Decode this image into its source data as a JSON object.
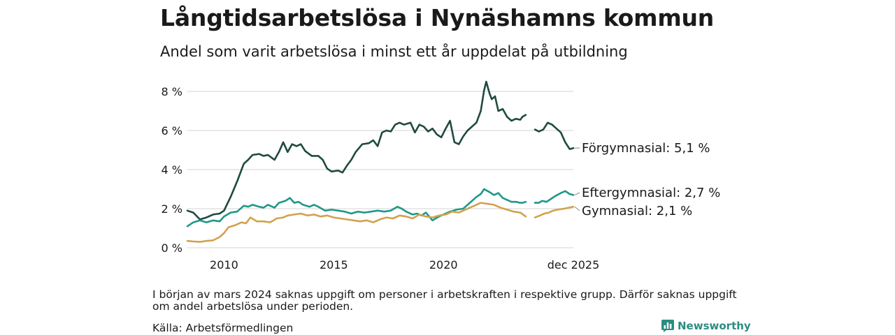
{
  "title": "Långtidsarbetslösa i Nynäshamns kommun",
  "subtitle": "Andel som varit arbetslösa i minst ett år uppdelat på utbildning",
  "note": "I början av mars 2024 saknas uppgift om personer i arbetskraften i respektive grupp. Därför saknas uppgift om andel arbetslösa under perioden.",
  "source": "Källa: Arbetsförmedlingen",
  "brand": "Newsworthy",
  "chart_data": {
    "type": "line",
    "title": "Långtidsarbetslösa i Nynäshamns kommun",
    "xlabel": "",
    "ylabel": "",
    "ylim": [
      0,
      8.5
    ],
    "xlim": [
      2008.33,
      2025.92
    ],
    "grid": true,
    "y_ticks": [
      0,
      2,
      4,
      6,
      8
    ],
    "y_tick_labels": [
      "0 %",
      "2 %",
      "4 %",
      "6 %",
      "8 %"
    ],
    "x_ticks": [
      2010,
      2015,
      2020,
      2025.92
    ],
    "x_tick_labels": [
      "2010",
      "2015",
      "2020",
      "dec 2025"
    ],
    "gap": [
      2023.75,
      2024.17
    ],
    "series": [
      {
        "name": "Förgymnasial",
        "label": "Förgymnasial: 5,1 %",
        "color": "#1f4a40",
        "points": [
          [
            2008.33,
            1.9
          ],
          [
            2008.6,
            1.8
          ],
          [
            2008.9,
            1.45
          ],
          [
            2009.2,
            1.55
          ],
          [
            2009.5,
            1.7
          ],
          [
            2009.8,
            1.75
          ],
          [
            2010.0,
            1.9
          ],
          [
            2010.3,
            2.6
          ],
          [
            2010.6,
            3.4
          ],
          [
            2010.9,
            4.3
          ],
          [
            2011.1,
            4.5
          ],
          [
            2011.3,
            4.75
          ],
          [
            2011.6,
            4.8
          ],
          [
            2011.8,
            4.7
          ],
          [
            2012.0,
            4.75
          ],
          [
            2012.3,
            4.5
          ],
          [
            2012.5,
            4.9
          ],
          [
            2012.7,
            5.4
          ],
          [
            2012.9,
            4.9
          ],
          [
            2013.1,
            5.3
          ],
          [
            2013.3,
            5.2
          ],
          [
            2013.5,
            5.3
          ],
          [
            2013.7,
            4.95
          ],
          [
            2014.0,
            4.7
          ],
          [
            2014.3,
            4.7
          ],
          [
            2014.5,
            4.5
          ],
          [
            2014.7,
            4.05
          ],
          [
            2014.9,
            3.9
          ],
          [
            2015.2,
            3.95
          ],
          [
            2015.4,
            3.85
          ],
          [
            2015.6,
            4.2
          ],
          [
            2015.8,
            4.5
          ],
          [
            2016.0,
            4.9
          ],
          [
            2016.3,
            5.3
          ],
          [
            2016.6,
            5.35
          ],
          [
            2016.8,
            5.5
          ],
          [
            2017.0,
            5.2
          ],
          [
            2017.2,
            5.9
          ],
          [
            2017.4,
            6.0
          ],
          [
            2017.6,
            5.95
          ],
          [
            2017.8,
            6.3
          ],
          [
            2018.0,
            6.4
          ],
          [
            2018.2,
            6.3
          ],
          [
            2018.5,
            6.4
          ],
          [
            2018.7,
            5.9
          ],
          [
            2018.9,
            6.3
          ],
          [
            2019.1,
            6.2
          ],
          [
            2019.3,
            5.95
          ],
          [
            2019.5,
            6.1
          ],
          [
            2019.7,
            5.8
          ],
          [
            2019.9,
            5.65
          ],
          [
            2020.1,
            6.1
          ],
          [
            2020.3,
            6.5
          ],
          [
            2020.5,
            5.4
          ],
          [
            2020.7,
            5.3
          ],
          [
            2020.9,
            5.7
          ],
          [
            2021.1,
            6.0
          ],
          [
            2021.3,
            6.2
          ],
          [
            2021.5,
            6.4
          ],
          [
            2021.7,
            7.0
          ],
          [
            2021.85,
            8.05
          ],
          [
            2021.95,
            8.5
          ],
          [
            2022.1,
            7.9
          ],
          [
            2022.2,
            7.6
          ],
          [
            2022.35,
            7.75
          ],
          [
            2022.5,
            7.0
          ],
          [
            2022.7,
            7.1
          ],
          [
            2022.9,
            6.7
          ],
          [
            2023.1,
            6.5
          ],
          [
            2023.3,
            6.6
          ],
          [
            2023.5,
            6.55
          ],
          [
            2023.6,
            6.7
          ],
          [
            2023.75,
            6.8
          ],
          [
            2024.17,
            6.05
          ],
          [
            2024.35,
            5.95
          ],
          [
            2024.55,
            6.05
          ],
          [
            2024.75,
            6.4
          ],
          [
            2024.95,
            6.3
          ],
          [
            2025.15,
            6.1
          ],
          [
            2025.35,
            5.9
          ],
          [
            2025.55,
            5.4
          ],
          [
            2025.75,
            5.05
          ],
          [
            2025.92,
            5.1
          ]
        ]
      },
      {
        "name": "Eftergymnasial",
        "label": "Eftergymnasial: 2,7 %",
        "color": "#1f9887",
        "points": [
          [
            2008.33,
            1.1
          ],
          [
            2008.6,
            1.3
          ],
          [
            2008.9,
            1.4
          ],
          [
            2009.2,
            1.3
          ],
          [
            2009.5,
            1.4
          ],
          [
            2009.8,
            1.35
          ],
          [
            2010.0,
            1.6
          ],
          [
            2010.3,
            1.8
          ],
          [
            2010.6,
            1.85
          ],
          [
            2010.9,
            2.15
          ],
          [
            2011.1,
            2.1
          ],
          [
            2011.3,
            2.2
          ],
          [
            2011.6,
            2.1
          ],
          [
            2011.8,
            2.05
          ],
          [
            2012.0,
            2.2
          ],
          [
            2012.3,
            2.05
          ],
          [
            2012.5,
            2.3
          ],
          [
            2012.8,
            2.4
          ],
          [
            2013.0,
            2.55
          ],
          [
            2013.2,
            2.3
          ],
          [
            2013.4,
            2.35
          ],
          [
            2013.6,
            2.2
          ],
          [
            2013.9,
            2.1
          ],
          [
            2014.1,
            2.2
          ],
          [
            2014.3,
            2.1
          ],
          [
            2014.6,
            1.9
          ],
          [
            2014.9,
            1.95
          ],
          [
            2015.2,
            1.9
          ],
          [
            2015.5,
            1.85
          ],
          [
            2015.8,
            1.75
          ],
          [
            2016.1,
            1.85
          ],
          [
            2016.4,
            1.8
          ],
          [
            2016.7,
            1.85
          ],
          [
            2017.0,
            1.9
          ],
          [
            2017.3,
            1.85
          ],
          [
            2017.6,
            1.9
          ],
          [
            2017.9,
            2.1
          ],
          [
            2018.1,
            2.0
          ],
          [
            2018.3,
            1.85
          ],
          [
            2018.6,
            1.7
          ],
          [
            2018.8,
            1.75
          ],
          [
            2019.0,
            1.65
          ],
          [
            2019.2,
            1.8
          ],
          [
            2019.5,
            1.4
          ],
          [
            2019.8,
            1.6
          ],
          [
            2020.0,
            1.7
          ],
          [
            2020.3,
            1.85
          ],
          [
            2020.6,
            1.95
          ],
          [
            2020.9,
            2.0
          ],
          [
            2021.2,
            2.3
          ],
          [
            2021.5,
            2.6
          ],
          [
            2021.7,
            2.75
          ],
          [
            2021.85,
            3.0
          ],
          [
            2022.1,
            2.85
          ],
          [
            2022.3,
            2.7
          ],
          [
            2022.5,
            2.8
          ],
          [
            2022.7,
            2.55
          ],
          [
            2022.9,
            2.45
          ],
          [
            2023.1,
            2.35
          ],
          [
            2023.3,
            2.35
          ],
          [
            2023.5,
            2.3
          ],
          [
            2023.6,
            2.3
          ],
          [
            2023.75,
            2.35
          ],
          [
            2024.17,
            2.3
          ],
          [
            2024.35,
            2.3
          ],
          [
            2024.5,
            2.4
          ],
          [
            2024.7,
            2.35
          ],
          [
            2024.9,
            2.5
          ],
          [
            2025.1,
            2.65
          ],
          [
            2025.35,
            2.8
          ],
          [
            2025.55,
            2.9
          ],
          [
            2025.75,
            2.75
          ],
          [
            2025.92,
            2.7
          ]
        ]
      },
      {
        "name": "Gymnasial",
        "label": "Gymnasial: 2,1 %",
        "color": "#d1a24e",
        "points": [
          [
            2008.33,
            0.35
          ],
          [
            2008.6,
            0.32
          ],
          [
            2008.9,
            0.3
          ],
          [
            2009.2,
            0.35
          ],
          [
            2009.5,
            0.38
          ],
          [
            2009.8,
            0.55
          ],
          [
            2010.0,
            0.75
          ],
          [
            2010.2,
            1.05
          ],
          [
            2010.5,
            1.15
          ],
          [
            2010.8,
            1.3
          ],
          [
            2011.0,
            1.25
          ],
          [
            2011.2,
            1.55
          ],
          [
            2011.5,
            1.35
          ],
          [
            2011.8,
            1.35
          ],
          [
            2012.1,
            1.3
          ],
          [
            2012.4,
            1.5
          ],
          [
            2012.7,
            1.55
          ],
          [
            2012.9,
            1.65
          ],
          [
            2013.2,
            1.7
          ],
          [
            2013.5,
            1.75
          ],
          [
            2013.8,
            1.65
          ],
          [
            2014.1,
            1.7
          ],
          [
            2014.4,
            1.6
          ],
          [
            2014.7,
            1.65
          ],
          [
            2015.0,
            1.55
          ],
          [
            2015.3,
            1.5
          ],
          [
            2015.6,
            1.45
          ],
          [
            2015.9,
            1.4
          ],
          [
            2016.2,
            1.35
          ],
          [
            2016.5,
            1.4
          ],
          [
            2016.8,
            1.3
          ],
          [
            2017.1,
            1.45
          ],
          [
            2017.4,
            1.55
          ],
          [
            2017.7,
            1.5
          ],
          [
            2018.0,
            1.65
          ],
          [
            2018.3,
            1.6
          ],
          [
            2018.6,
            1.5
          ],
          [
            2018.9,
            1.7
          ],
          [
            2019.2,
            1.6
          ],
          [
            2019.5,
            1.55
          ],
          [
            2019.8,
            1.65
          ],
          [
            2020.1,
            1.7
          ],
          [
            2020.4,
            1.85
          ],
          [
            2020.7,
            1.8
          ],
          [
            2021.0,
            1.95
          ],
          [
            2021.3,
            2.1
          ],
          [
            2021.5,
            2.2
          ],
          [
            2021.7,
            2.3
          ],
          [
            2022.0,
            2.25
          ],
          [
            2022.3,
            2.2
          ],
          [
            2022.6,
            2.05
          ],
          [
            2022.9,
            1.95
          ],
          [
            2023.2,
            1.85
          ],
          [
            2023.5,
            1.8
          ],
          [
            2023.75,
            1.6
          ],
          [
            2024.17,
            1.55
          ],
          [
            2024.4,
            1.65
          ],
          [
            2024.6,
            1.75
          ],
          [
            2024.8,
            1.8
          ],
          [
            2025.0,
            1.9
          ],
          [
            2025.2,
            1.95
          ],
          [
            2025.5,
            2.0
          ],
          [
            2025.7,
            2.05
          ],
          [
            2025.92,
            2.1
          ]
        ]
      }
    ]
  }
}
